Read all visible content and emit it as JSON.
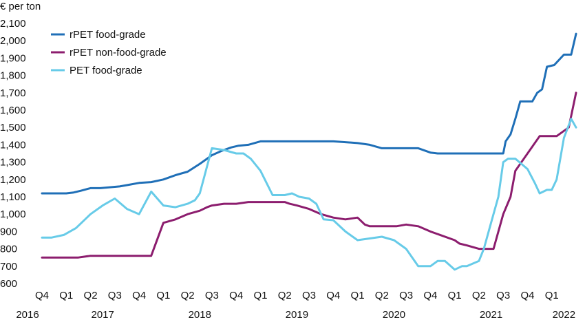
{
  "chart_data": {
    "type": "line",
    "y_unit_label": "€ per ton",
    "ylim": [
      600,
      2100
    ],
    "y_ticks": [
      "600",
      "700",
      "800",
      "900",
      "1,000",
      "1,100",
      "1,200",
      "1,300",
      "1,400",
      "1,500",
      "1,600",
      "1,700",
      "1,800",
      "1,900",
      "2,000",
      "2,100"
    ],
    "y_tick_values": [
      600,
      700,
      800,
      900,
      1000,
      1100,
      1200,
      1300,
      1400,
      1500,
      1600,
      1700,
      1800,
      1900,
      2000,
      2100
    ],
    "x_range": [
      0,
      22
    ],
    "quarter_ticks": [
      "Q4",
      "Q1",
      "Q2",
      "Q3",
      "Q4",
      "Q1",
      "Q2",
      "Q3",
      "Q4",
      "Q1",
      "Q2",
      "Q3",
      "Q4",
      "Q1",
      "Q2",
      "Q3",
      "Q4",
      "Q1",
      "Q2",
      "Q3",
      "Q4",
      "Q1"
    ],
    "years": [
      {
        "label": "2016",
        "at": 0
      },
      {
        "label": "2017",
        "at": 2.5
      },
      {
        "label": "2018",
        "at": 6.5
      },
      {
        "label": "2019",
        "at": 10.5
      },
      {
        "label": "2020",
        "at": 14.5
      },
      {
        "label": "2021",
        "at": 18.5
      },
      {
        "label": "2022",
        "at": 21.5
      }
    ],
    "grid": false,
    "legend_position": "top-left",
    "series": [
      {
        "name": "rPET food-grade",
        "color": "#1f6fb7",
        "x": [
          0,
          0.5,
          1,
          1.3,
          1.6,
          2,
          2.4,
          2.8,
          3.2,
          3.6,
          4,
          4.5,
          5,
          5.5,
          6,
          6.5,
          6.8,
          7,
          7.4,
          7.8,
          8.1,
          8.5,
          9,
          9.5,
          10,
          10.5,
          11,
          11.5,
          12,
          12.5,
          13,
          13.5,
          14,
          14.5,
          15,
          15.5,
          16,
          16.3,
          16.6,
          17,
          17.5,
          18,
          18.5,
          19,
          19.1,
          19.3,
          19.5,
          19.7,
          19.8,
          20.2,
          20.4,
          20.6,
          20.8,
          21.1,
          21.5,
          21.8,
          22
        ],
        "y": [
          1120,
          1120,
          1120,
          1125,
          1135,
          1150,
          1150,
          1155,
          1160,
          1170,
          1180,
          1185,
          1200,
          1225,
          1245,
          1290,
          1320,
          1340,
          1365,
          1385,
          1395,
          1400,
          1420,
          1420,
          1420,
          1420,
          1420,
          1420,
          1420,
          1415,
          1410,
          1400,
          1380,
          1380,
          1380,
          1380,
          1355,
          1350,
          1350,
          1350,
          1350,
          1350,
          1350,
          1350,
          1420,
          1460,
          1550,
          1650,
          1650,
          1650,
          1700,
          1720,
          1850,
          1860,
          1920,
          1920,
          2040
        ]
      },
      {
        "name": "rPET non-food-grade",
        "color": "#8c1d6e",
        "x": [
          0,
          1,
          1.5,
          2,
          3,
          4,
          4.5,
          5,
          5.5,
          6,
          6.5,
          6.8,
          7,
          7.5,
          8,
          8.5,
          9,
          10,
          10.2,
          10.5,
          11,
          11.5,
          12,
          12.5,
          13,
          13.3,
          13.5,
          14,
          14.2,
          14.6,
          15,
          15.5,
          16,
          16.4,
          17,
          17.2,
          17.5,
          18,
          18.3,
          18.6,
          19,
          19.3,
          19.5,
          20,
          20.5,
          21,
          21.2,
          21.5,
          21.7,
          22
        ],
        "y": [
          750,
          750,
          750,
          760,
          760,
          760,
          760,
          950,
          970,
          1000,
          1020,
          1040,
          1050,
          1060,
          1060,
          1070,
          1070,
          1070,
          1060,
          1050,
          1030,
          1000,
          980,
          970,
          980,
          940,
          930,
          930,
          930,
          930,
          940,
          930,
          900,
          880,
          850,
          830,
          820,
          800,
          800,
          800,
          1000,
          1100,
          1250,
          1350,
          1450,
          1450,
          1450,
          1480,
          1500,
          1700
        ]
      },
      {
        "name": "PET food-grade",
        "color": "#67cbe8",
        "x": [
          0,
          0.4,
          0.9,
          1.4,
          2,
          2.5,
          3,
          3.5,
          4,
          4.5,
          5,
          5.5,
          6,
          6.3,
          6.5,
          7,
          7.5,
          8,
          8.3,
          8.6,
          9,
          9.5,
          10,
          10.3,
          10.6,
          11,
          11.3,
          11.6,
          12,
          12.5,
          13,
          13.5,
          14,
          14.5,
          15,
          15.5,
          16,
          16.3,
          16.6,
          17,
          17.3,
          17.5,
          18,
          18.2,
          18.5,
          18.8,
          19,
          19.2,
          19.5,
          20,
          20.3,
          20.5,
          20.8,
          21,
          21.2,
          21.5,
          21.8,
          22
        ],
        "y": [
          865,
          865,
          880,
          920,
          1000,
          1050,
          1090,
          1030,
          1000,
          1130,
          1050,
          1040,
          1060,
          1080,
          1120,
          1380,
          1370,
          1350,
          1350,
          1320,
          1250,
          1110,
          1110,
          1120,
          1100,
          1090,
          1060,
          970,
          965,
          900,
          850,
          860,
          870,
          850,
          800,
          700,
          700,
          730,
          730,
          680,
          700,
          700,
          730,
          800,
          950,
          1100,
          1300,
          1320,
          1320,
          1260,
          1180,
          1120,
          1140,
          1140,
          1200,
          1440,
          1550,
          1500
        ]
      }
    ]
  }
}
